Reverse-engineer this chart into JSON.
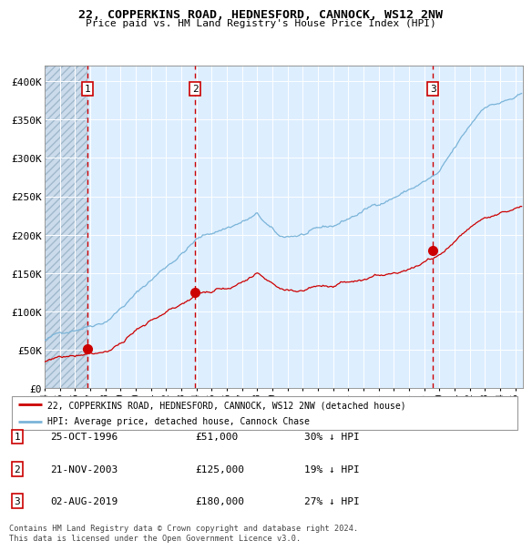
{
  "title": "22, COPPERKINS ROAD, HEDNESFORD, CANNOCK, WS12 2NW",
  "subtitle": "Price paid vs. HM Land Registry's House Price Index (HPI)",
  "sale_prices": [
    51000,
    125000,
    180000
  ],
  "sale_labels": [
    "1",
    "2",
    "3"
  ],
  "sale_info": [
    {
      "label": "1",
      "date": "25-OCT-1996",
      "price": "£51,000",
      "note": "30% ↓ HPI"
    },
    {
      "label": "2",
      "date": "21-NOV-2003",
      "price": "£125,000",
      "note": "19% ↓ HPI"
    },
    {
      "label": "3",
      "date": "02-AUG-2019",
      "price": "£180,000",
      "note": "27% ↓ HPI"
    }
  ],
  "legend_entries": [
    "22, COPPERKINS ROAD, HEDNESFORD, CANNOCK, WS12 2NW (detached house)",
    "HPI: Average price, detached house, Cannock Chase"
  ],
  "footnote": "Contains HM Land Registry data © Crown copyright and database right 2024.\nThis data is licensed under the Open Government Licence v3.0.",
  "hpi_color": "#7ab4d8",
  "sale_color": "#cc0000",
  "vline_color": "#cc0000",
  "bg_color": "#ddeeff",
  "grid_color": "#ffffff",
  "ylim": [
    0,
    420000
  ],
  "yticks": [
    0,
    50000,
    100000,
    150000,
    200000,
    250000,
    300000,
    350000,
    400000
  ],
  "ytick_labels": [
    "£0",
    "£50K",
    "£100K",
    "£150K",
    "£200K",
    "£250K",
    "£300K",
    "£350K",
    "£400K"
  ],
  "sale_times": [
    1996.83,
    2003.92,
    2019.58
  ]
}
